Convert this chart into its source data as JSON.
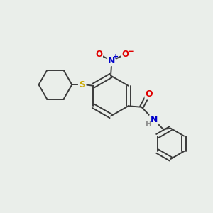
{
  "background_color": "#eaeeea",
  "bond_color": "#3a3a3a",
  "atom_colors": {
    "O": "#e00000",
    "N": "#0000cc",
    "S": "#ccaa00",
    "C": "#3a3a3a",
    "H": "#909090"
  },
  "figsize": [
    3.0,
    3.0
  ],
  "dpi": 100,
  "bond_lw": 1.4,
  "font_size": 8.5
}
